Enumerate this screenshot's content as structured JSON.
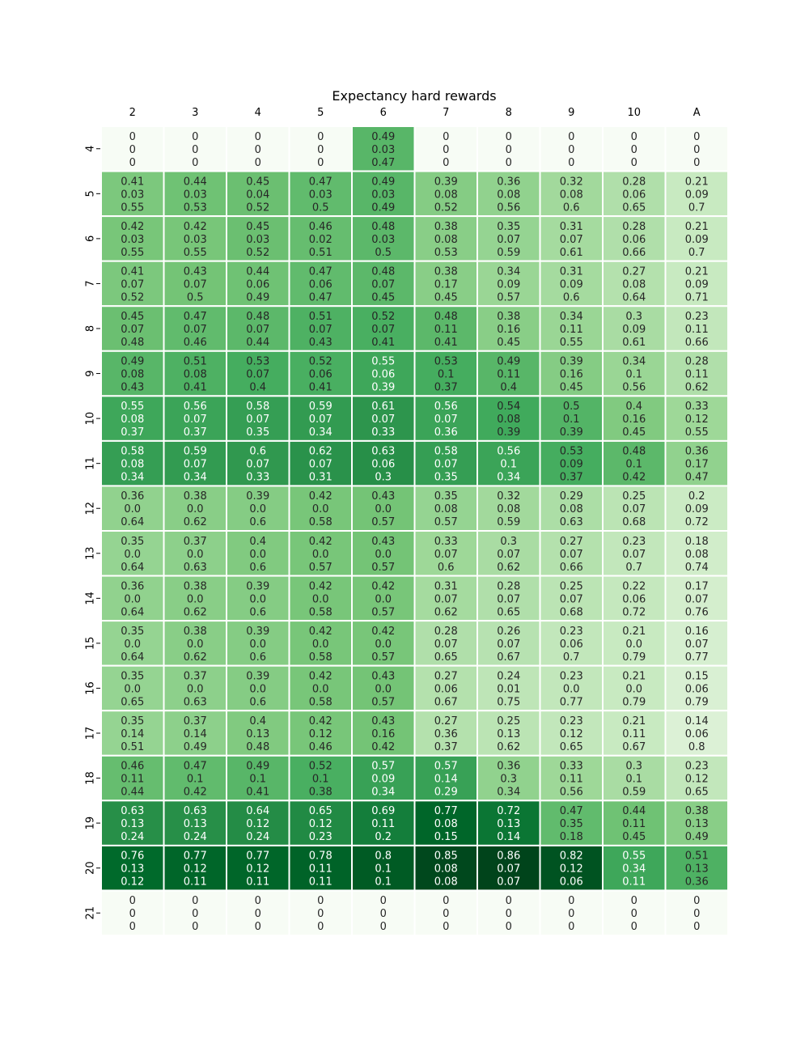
{
  "chart_data": {
    "type": "heatmap",
    "title": "Expectancy hard rewards",
    "xlabel": "",
    "ylabel": "",
    "x_tick_position": "top",
    "colormap": "Greens",
    "colormap_stops": [
      "#f7fcf5",
      "#e5f5e0",
      "#c7e9c0",
      "#a1d99b",
      "#74c476",
      "#41ab5d",
      "#238b45",
      "#006d2c",
      "#00441b"
    ],
    "color_value_range": [
      0,
      0.86
    ],
    "color_basis": "first value in each cell",
    "columns": [
      "2",
      "3",
      "4",
      "5",
      "6",
      "7",
      "8",
      "9",
      "10",
      "A"
    ],
    "rows": [
      "4",
      "5",
      "6",
      "7",
      "8",
      "9",
      "10",
      "11",
      "12",
      "13",
      "14",
      "15",
      "16",
      "17",
      "18",
      "19",
      "20",
      "21"
    ],
    "cells": [
      [
        [
          "0",
          "0",
          "0"
        ],
        [
          "0",
          "0",
          "0"
        ],
        [
          "0",
          "0",
          "0"
        ],
        [
          "0",
          "0",
          "0"
        ],
        [
          "0.49",
          "0.03",
          "0.47"
        ],
        [
          "0",
          "0",
          "0"
        ],
        [
          "0",
          "0",
          "0"
        ],
        [
          "0",
          "0",
          "0"
        ],
        [
          "0",
          "0",
          "0"
        ],
        [
          "0",
          "0",
          "0"
        ]
      ],
      [
        [
          "0.41",
          "0.03",
          "0.55"
        ],
        [
          "0.44",
          "0.03",
          "0.53"
        ],
        [
          "0.45",
          "0.04",
          "0.52"
        ],
        [
          "0.47",
          "0.03",
          "0.5"
        ],
        [
          "0.49",
          "0.03",
          "0.49"
        ],
        [
          "0.39",
          "0.08",
          "0.52"
        ],
        [
          "0.36",
          "0.08",
          "0.56"
        ],
        [
          "0.32",
          "0.08",
          "0.6"
        ],
        [
          "0.28",
          "0.06",
          "0.65"
        ],
        [
          "0.21",
          "0.09",
          "0.7"
        ]
      ],
      [
        [
          "0.42",
          "0.03",
          "0.55"
        ],
        [
          "0.42",
          "0.03",
          "0.55"
        ],
        [
          "0.45",
          "0.03",
          "0.52"
        ],
        [
          "0.46",
          "0.02",
          "0.51"
        ],
        [
          "0.48",
          "0.03",
          "0.5"
        ],
        [
          "0.38",
          "0.08",
          "0.53"
        ],
        [
          "0.35",
          "0.07",
          "0.59"
        ],
        [
          "0.31",
          "0.07",
          "0.61"
        ],
        [
          "0.28",
          "0.06",
          "0.66"
        ],
        [
          "0.21",
          "0.09",
          "0.7"
        ]
      ],
      [
        [
          "0.41",
          "0.07",
          "0.52"
        ],
        [
          "0.43",
          "0.07",
          "0.5"
        ],
        [
          "0.44",
          "0.06",
          "0.49"
        ],
        [
          "0.47",
          "0.06",
          "0.47"
        ],
        [
          "0.48",
          "0.07",
          "0.45"
        ],
        [
          "0.38",
          "0.17",
          "0.45"
        ],
        [
          "0.34",
          "0.09",
          "0.57"
        ],
        [
          "0.31",
          "0.09",
          "0.6"
        ],
        [
          "0.27",
          "0.08",
          "0.64"
        ],
        [
          "0.21",
          "0.09",
          "0.71"
        ]
      ],
      [
        [
          "0.45",
          "0.07",
          "0.48"
        ],
        [
          "0.47",
          "0.07",
          "0.46"
        ],
        [
          "0.48",
          "0.07",
          "0.44"
        ],
        [
          "0.51",
          "0.07",
          "0.43"
        ],
        [
          "0.52",
          "0.07",
          "0.41"
        ],
        [
          "0.48",
          "0.11",
          "0.41"
        ],
        [
          "0.38",
          "0.16",
          "0.45"
        ],
        [
          "0.34",
          "0.11",
          "0.55"
        ],
        [
          "0.3",
          "0.09",
          "0.61"
        ],
        [
          "0.23",
          "0.11",
          "0.66"
        ]
      ],
      [
        [
          "0.49",
          "0.08",
          "0.43"
        ],
        [
          "0.51",
          "0.08",
          "0.41"
        ],
        [
          "0.53",
          "0.07",
          "0.4"
        ],
        [
          "0.52",
          "0.06",
          "0.41"
        ],
        [
          "0.55",
          "0.06",
          "0.39"
        ],
        [
          "0.53",
          "0.1",
          "0.37"
        ],
        [
          "0.49",
          "0.11",
          "0.4"
        ],
        [
          "0.39",
          "0.16",
          "0.45"
        ],
        [
          "0.34",
          "0.1",
          "0.56"
        ],
        [
          "0.28",
          "0.11",
          "0.62"
        ]
      ],
      [
        [
          "0.55",
          "0.08",
          "0.37"
        ],
        [
          "0.56",
          "0.07",
          "0.37"
        ],
        [
          "0.58",
          "0.07",
          "0.35"
        ],
        [
          "0.59",
          "0.07",
          "0.34"
        ],
        [
          "0.61",
          "0.07",
          "0.33"
        ],
        [
          "0.56",
          "0.07",
          "0.36"
        ],
        [
          "0.54",
          "0.08",
          "0.39"
        ],
        [
          "0.5",
          "0.1",
          "0.39"
        ],
        [
          "0.4",
          "0.16",
          "0.45"
        ],
        [
          "0.33",
          "0.12",
          "0.55"
        ]
      ],
      [
        [
          "0.58",
          "0.08",
          "0.34"
        ],
        [
          "0.59",
          "0.07",
          "0.34"
        ],
        [
          "0.6",
          "0.07",
          "0.33"
        ],
        [
          "0.62",
          "0.07",
          "0.31"
        ],
        [
          "0.63",
          "0.06",
          "0.3"
        ],
        [
          "0.58",
          "0.07",
          "0.35"
        ],
        [
          "0.56",
          "0.1",
          "0.34"
        ],
        [
          "0.53",
          "0.09",
          "0.37"
        ],
        [
          "0.48",
          "0.1",
          "0.42"
        ],
        [
          "0.36",
          "0.17",
          "0.47"
        ]
      ],
      [
        [
          "0.36",
          "0.0",
          "0.64"
        ],
        [
          "0.38",
          "0.0",
          "0.62"
        ],
        [
          "0.39",
          "0.0",
          "0.6"
        ],
        [
          "0.42",
          "0.0",
          "0.58"
        ],
        [
          "0.43",
          "0.0",
          "0.57"
        ],
        [
          "0.35",
          "0.08",
          "0.57"
        ],
        [
          "0.32",
          "0.08",
          "0.59"
        ],
        [
          "0.29",
          "0.08",
          "0.63"
        ],
        [
          "0.25",
          "0.07",
          "0.68"
        ],
        [
          "0.2",
          "0.09",
          "0.72"
        ]
      ],
      [
        [
          "0.35",
          "0.0",
          "0.64"
        ],
        [
          "0.37",
          "0.0",
          "0.63"
        ],
        [
          "0.4",
          "0.0",
          "0.6"
        ],
        [
          "0.42",
          "0.0",
          "0.57"
        ],
        [
          "0.43",
          "0.0",
          "0.57"
        ],
        [
          "0.33",
          "0.07",
          "0.6"
        ],
        [
          "0.3",
          "0.07",
          "0.62"
        ],
        [
          "0.27",
          "0.07",
          "0.66"
        ],
        [
          "0.23",
          "0.07",
          "0.7"
        ],
        [
          "0.18",
          "0.08",
          "0.74"
        ]
      ],
      [
        [
          "0.36",
          "0.0",
          "0.64"
        ],
        [
          "0.38",
          "0.0",
          "0.62"
        ],
        [
          "0.39",
          "0.0",
          "0.6"
        ],
        [
          "0.42",
          "0.0",
          "0.58"
        ],
        [
          "0.42",
          "0.0",
          "0.57"
        ],
        [
          "0.31",
          "0.07",
          "0.62"
        ],
        [
          "0.28",
          "0.07",
          "0.65"
        ],
        [
          "0.25",
          "0.07",
          "0.68"
        ],
        [
          "0.22",
          "0.06",
          "0.72"
        ],
        [
          "0.17",
          "0.07",
          "0.76"
        ]
      ],
      [
        [
          "0.35",
          "0.0",
          "0.64"
        ],
        [
          "0.38",
          "0.0",
          "0.62"
        ],
        [
          "0.39",
          "0.0",
          "0.6"
        ],
        [
          "0.42",
          "0.0",
          "0.58"
        ],
        [
          "0.42",
          "0.0",
          "0.57"
        ],
        [
          "0.28",
          "0.07",
          "0.65"
        ],
        [
          "0.26",
          "0.07",
          "0.67"
        ],
        [
          "0.23",
          "0.06",
          "0.7"
        ],
        [
          "0.21",
          "0.0",
          "0.79"
        ],
        [
          "0.16",
          "0.07",
          "0.77"
        ]
      ],
      [
        [
          "0.35",
          "0.0",
          "0.65"
        ],
        [
          "0.37",
          "0.0",
          "0.63"
        ],
        [
          "0.39",
          "0.0",
          "0.6"
        ],
        [
          "0.42",
          "0.0",
          "0.58"
        ],
        [
          "0.43",
          "0.0",
          "0.57"
        ],
        [
          "0.27",
          "0.06",
          "0.67"
        ],
        [
          "0.24",
          "0.01",
          "0.75"
        ],
        [
          "0.23",
          "0.0",
          "0.77"
        ],
        [
          "0.21",
          "0.0",
          "0.79"
        ],
        [
          "0.15",
          "0.06",
          "0.79"
        ]
      ],
      [
        [
          "0.35",
          "0.14",
          "0.51"
        ],
        [
          "0.37",
          "0.14",
          "0.49"
        ],
        [
          "0.4",
          "0.13",
          "0.48"
        ],
        [
          "0.42",
          "0.12",
          "0.46"
        ],
        [
          "0.43",
          "0.16",
          "0.42"
        ],
        [
          "0.27",
          "0.36",
          "0.37"
        ],
        [
          "0.25",
          "0.13",
          "0.62"
        ],
        [
          "0.23",
          "0.12",
          "0.65"
        ],
        [
          "0.21",
          "0.11",
          "0.67"
        ],
        [
          "0.14",
          "0.06",
          "0.8"
        ]
      ],
      [
        [
          "0.46",
          "0.11",
          "0.44"
        ],
        [
          "0.47",
          "0.1",
          "0.42"
        ],
        [
          "0.49",
          "0.1",
          "0.41"
        ],
        [
          "0.52",
          "0.1",
          "0.38"
        ],
        [
          "0.57",
          "0.09",
          "0.34"
        ],
        [
          "0.57",
          "0.14",
          "0.29"
        ],
        [
          "0.36",
          "0.3",
          "0.34"
        ],
        [
          "0.33",
          "0.11",
          "0.56"
        ],
        [
          "0.3",
          "0.1",
          "0.59"
        ],
        [
          "0.23",
          "0.12",
          "0.65"
        ]
      ],
      [
        [
          "0.63",
          "0.13",
          "0.24"
        ],
        [
          "0.63",
          "0.13",
          "0.24"
        ],
        [
          "0.64",
          "0.12",
          "0.24"
        ],
        [
          "0.65",
          "0.12",
          "0.23"
        ],
        [
          "0.69",
          "0.11",
          "0.2"
        ],
        [
          "0.77",
          "0.08",
          "0.15"
        ],
        [
          "0.72",
          "0.13",
          "0.14"
        ],
        [
          "0.47",
          "0.35",
          "0.18"
        ],
        [
          "0.44",
          "0.11",
          "0.45"
        ],
        [
          "0.38",
          "0.13",
          "0.49"
        ]
      ],
      [
        [
          "0.76",
          "0.13",
          "0.12"
        ],
        [
          "0.77",
          "0.12",
          "0.11"
        ],
        [
          "0.77",
          "0.12",
          "0.11"
        ],
        [
          "0.78",
          "0.11",
          "0.11"
        ],
        [
          "0.8",
          "0.1",
          "0.1"
        ],
        [
          "0.85",
          "0.08",
          "0.08"
        ],
        [
          "0.86",
          "0.07",
          "0.07"
        ],
        [
          "0.82",
          "0.12",
          "0.06"
        ],
        [
          "0.55",
          "0.34",
          "0.11"
        ],
        [
          "0.51",
          "0.13",
          "0.36"
        ]
      ],
      [
        [
          "0",
          "0",
          "0"
        ],
        [
          "0",
          "0",
          "0"
        ],
        [
          "0",
          "0",
          "0"
        ],
        [
          "0",
          "0",
          "0"
        ],
        [
          "0",
          "0",
          "0"
        ],
        [
          "0",
          "0",
          "0"
        ],
        [
          "0",
          "0",
          "0"
        ],
        [
          "0",
          "0",
          "0"
        ],
        [
          "0",
          "0",
          "0"
        ],
        [
          "0",
          "0",
          "0"
        ]
      ]
    ]
  }
}
